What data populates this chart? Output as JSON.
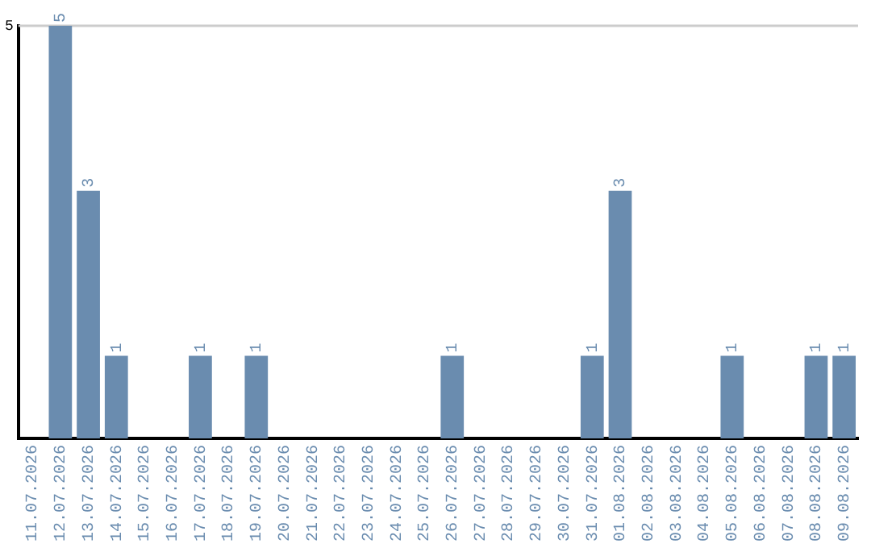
{
  "chart_data": {
    "type": "bar",
    "categories": [
      "11.07.2026",
      "12.07.2026",
      "13.07.2026",
      "14.07.2026",
      "15.07.2026",
      "16.07.2026",
      "17.07.2026",
      "18.07.2026",
      "19.07.2026",
      "20.07.2026",
      "21.07.2026",
      "22.07.2026",
      "23.07.2026",
      "24.07.2026",
      "25.07.2026",
      "26.07.2026",
      "27.07.2026",
      "28.07.2026",
      "29.07.2026",
      "30.07.2026",
      "31.07.2026",
      "01.08.2026",
      "02.08.2026",
      "03.08.2026",
      "04.08.2026",
      "05.08.2026",
      "06.08.2026",
      "07.08.2026",
      "08.08.2026",
      "09.08.2026"
    ],
    "values": [
      0,
      5,
      3,
      1,
      0,
      0,
      1,
      0,
      1,
      0,
      0,
      0,
      0,
      0,
      0,
      1,
      0,
      0,
      0,
      0,
      1,
      3,
      0,
      0,
      0,
      1,
      0,
      0,
      1,
      1
    ],
    "value_labels": [
      null,
      "5",
      "3",
      "1",
      null,
      null,
      "1",
      null,
      "1",
      null,
      null,
      null,
      null,
      null,
      null,
      "1",
      null,
      null,
      null,
      null,
      "1",
      "3",
      null,
      null,
      null,
      "1",
      null,
      null,
      "1",
      "1"
    ],
    "color": "#6a8caf",
    "ylim": [
      0,
      5
    ],
    "yticks": [
      5
    ],
    "ref_lines": [
      {
        "axis": "y",
        "value": 5,
        "color": "#cccccc"
      }
    ],
    "legend": false
  }
}
